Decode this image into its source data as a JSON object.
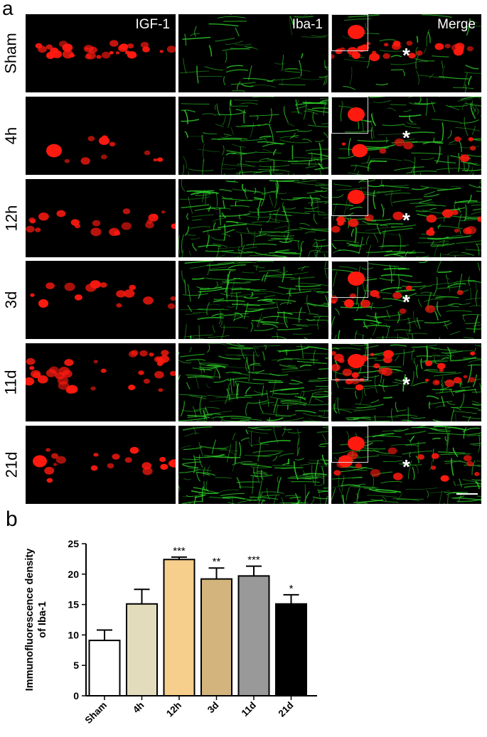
{
  "panel_a_label": "a",
  "panel_b_label": "b",
  "columns": [
    "IGF-1",
    "Iba-1",
    "Merge"
  ],
  "rows": [
    "Sham",
    "4h",
    "12h",
    "3d",
    "11d",
    "21d"
  ],
  "asterisk": "*",
  "colors": {
    "igf1": "#ff1a10",
    "iba1": "#2fd62a",
    "background": "#000000"
  },
  "chart_data": {
    "type": "bar",
    "ylabel": "Immunofluorescence density of Iba-1",
    "ylabel_lines": [
      "Immunofluorescence density",
      "of Iba-1"
    ],
    "xlabel": "",
    "categories": [
      "Sham",
      "4h",
      "12h",
      "3d",
      "11d",
      "21d"
    ],
    "values": [
      9.1,
      15.1,
      22.4,
      19.2,
      19.7,
      15.1
    ],
    "errors": [
      1.7,
      2.4,
      0.4,
      1.8,
      1.6,
      1.5
    ],
    "significance": [
      "",
      "",
      "***",
      "**",
      "***",
      "*"
    ],
    "bar_colors": [
      "#ffffff",
      "#e3dcbc",
      "#f7cf8c",
      "#d2b47c",
      "#999999",
      "#000000"
    ],
    "ylim": [
      0,
      25
    ],
    "yticks": [
      0,
      5,
      10,
      15,
      20,
      25
    ],
    "grid": false
  }
}
